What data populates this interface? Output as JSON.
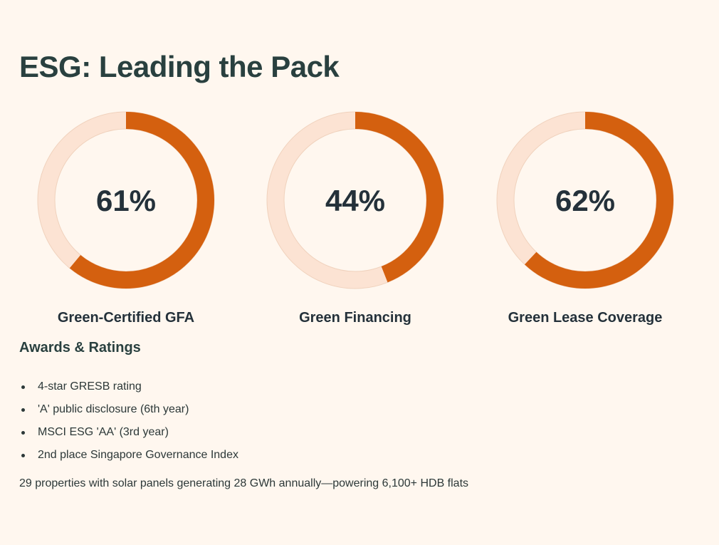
{
  "header": {
    "title": "ESG: Leading the Pack"
  },
  "colors": {
    "accent": "#d4600f",
    "track": "#fce3d3",
    "track_stroke": "#f0d2bd",
    "center_text": "#24313a"
  },
  "chart_data": {
    "type": "pie",
    "subtype": "donut",
    "charts": [
      {
        "label": "Green-Certified GFA",
        "value": 61,
        "display": "61%"
      },
      {
        "label": "Green Financing",
        "value": 44,
        "display": "44%"
      },
      {
        "label": "Green Lease Coverage",
        "value": 62,
        "display": "62%"
      }
    ],
    "max": 100,
    "unit": "%"
  },
  "awards": {
    "heading": "Awards & Ratings",
    "items": [
      "4-star GRESB rating",
      "'A' public disclosure (6th year)",
      "MSCI ESG 'AA' (3rd year)",
      "2nd place Singapore Governance Index"
    ]
  },
  "footer": {
    "note": "29 properties with solar panels generating 28 GWh annually—powering 6,100+ HDB flats"
  }
}
